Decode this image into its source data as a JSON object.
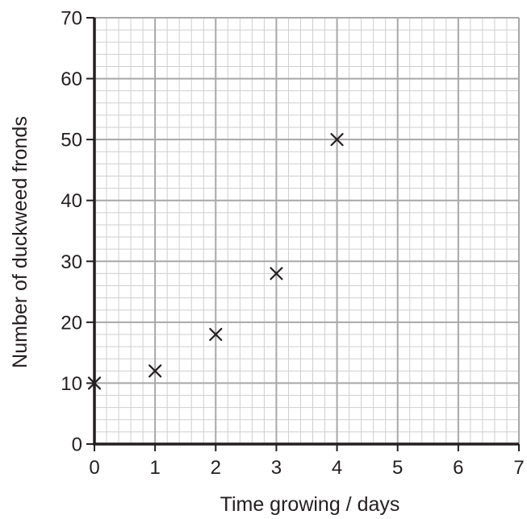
{
  "chart_data": {
    "type": "scatter",
    "title": "",
    "xlabel": "Time growing / days",
    "ylabel": "Number of duckweed fronds",
    "xlim": [
      0,
      7
    ],
    "ylim": [
      0,
      70
    ],
    "x_ticks": [
      0,
      1,
      2,
      3,
      4,
      5,
      6,
      7
    ],
    "y_ticks": [
      0,
      10,
      20,
      30,
      40,
      50,
      60,
      70
    ],
    "x_tick_labels": [
      "0",
      "1",
      "2",
      "3",
      "4",
      "5",
      "6",
      "7"
    ],
    "y_tick_labels": [
      "0",
      "10",
      "20",
      "30",
      "40",
      "50",
      "60",
      "70"
    ],
    "grid": true,
    "minor_divisions": 5,
    "marker": "x",
    "points": [
      {
        "x": 0,
        "y": 10
      },
      {
        "x": 1,
        "y": 12
      },
      {
        "x": 2,
        "y": 18
      },
      {
        "x": 3,
        "y": 28
      },
      {
        "x": 4,
        "y": 50
      }
    ],
    "colors": {
      "minor_grid": "#cfcfcf",
      "major_grid": "#a8a8a8",
      "axis": "#231f20",
      "marker": "#231f20"
    }
  }
}
